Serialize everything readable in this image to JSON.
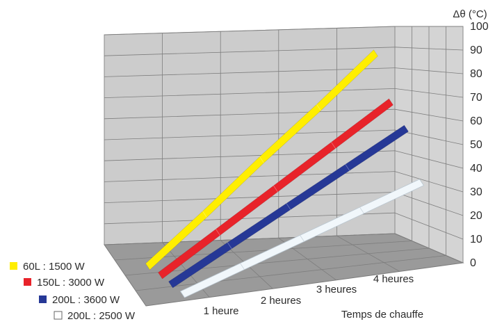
{
  "chart_data": {
    "type": "line",
    "title": "",
    "xlabel": "Temps de chauffe",
    "ylabel": "Δθ (°C)",
    "categories": [
      "",
      "1 heure",
      "2 heures",
      "3 heures",
      "4 heures"
    ],
    "x": [
      0,
      1,
      2,
      3,
      4
    ],
    "y_ticks": [
      "0",
      "10",
      "20",
      "30",
      "40",
      "50",
      "60",
      "70",
      "80",
      "90",
      "100"
    ],
    "ylim": [
      0,
      100
    ],
    "grid": true,
    "legend_position": "bottom-left",
    "series": [
      {
        "name": "60L : 1500 W",
        "color": "#ffee00",
        "values": [
          0,
          22,
          45,
          67,
          90
        ]
      },
      {
        "name": "150L : 3000 W",
        "color": "#e8232a",
        "values": [
          0,
          18,
          36,
          54,
          72
        ]
      },
      {
        "name": "200L : 3600 W",
        "color": "#263896",
        "values": [
          0,
          16,
          32,
          48,
          64
        ]
      },
      {
        "name": "200L : 2500 W",
        "color": "#f1f7fb",
        "values": [
          0,
          11,
          22,
          33,
          44
        ]
      }
    ]
  }
}
